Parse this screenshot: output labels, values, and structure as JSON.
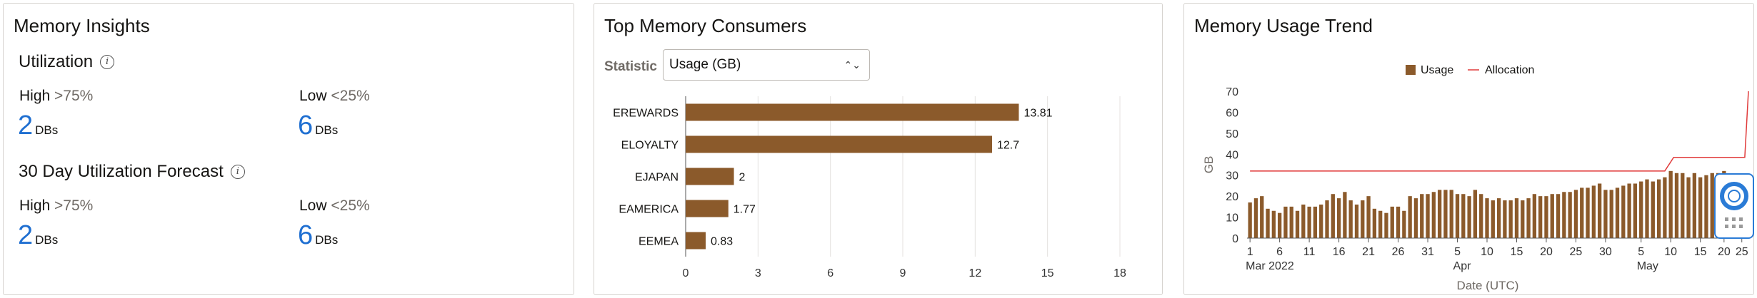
{
  "insights": {
    "title": "Memory Insights",
    "utilization": {
      "title": "Utilization",
      "high": {
        "level": "High",
        "cmp": ">75%",
        "count": "2",
        "unit": "DBs"
      },
      "low": {
        "level": "Low",
        "cmp": "<25%",
        "count": "6",
        "unit": "DBs"
      }
    },
    "forecast": {
      "title": "30 Day Utilization Forecast",
      "high": {
        "level": "High",
        "cmp": ">75%",
        "count": "2",
        "unit": "DBs"
      },
      "low": {
        "level": "Low",
        "cmp": "<25%",
        "count": "6",
        "unit": "DBs"
      }
    },
    "info_glyph": "i"
  },
  "consumers": {
    "title": "Top Memory Consumers",
    "statistic_label": "Statistic",
    "statistic_value": "Usage (GB)"
  },
  "trend": {
    "title": "Memory Usage Trend"
  },
  "colors": {
    "bar": "#8b5a2b",
    "allocation": "#e03b3b",
    "link": "#1f6fd1"
  },
  "chart_data": [
    {
      "type": "bar",
      "orientation": "horizontal",
      "categories": [
        "EREWARDS",
        "ELOYALTY",
        "EJAPAN",
        "EAMERICA",
        "EEMEA"
      ],
      "values": [
        13.81,
        12.7,
        2,
        1.77,
        0.83
      ],
      "value_labels": [
        "13.81",
        "12.7",
        "2",
        "1.77",
        "0.83"
      ],
      "xlim": [
        0,
        18
      ],
      "xticks": [
        "0",
        "3",
        "6",
        "9",
        "12",
        "15",
        "18"
      ],
      "grid": true
    },
    {
      "type": "bar",
      "ylabel": "GB",
      "xlabel": "Date (UTC)",
      "ylim": [
        0,
        70
      ],
      "yticks": [
        "0",
        "10",
        "20",
        "30",
        "40",
        "50",
        "60",
        "70"
      ],
      "xticks": [
        "1",
        "6",
        "11",
        "16",
        "21",
        "26",
        "31",
        "5",
        "10",
        "15",
        "20",
        "25",
        "30",
        "5",
        "10",
        "15",
        "20",
        "25"
      ],
      "month_labels": [
        {
          "label": "Mar 2022",
          "tick": 0
        },
        {
          "label": "Apr",
          "tick": 7
        },
        {
          "label": "May",
          "tick": 13
        }
      ],
      "legend": {
        "position": "top",
        "items": [
          "Usage",
          "Allocation"
        ]
      },
      "series": [
        {
          "name": "Usage",
          "type": "bar",
          "values": [
            17,
            19,
            20,
            14,
            13,
            12,
            15,
            15,
            13,
            16,
            15,
            15,
            16,
            18,
            21,
            19,
            22,
            18,
            16,
            18,
            20,
            14,
            13,
            12,
            15,
            15,
            13,
            20,
            19,
            21,
            21,
            22,
            23,
            23,
            23,
            21,
            21,
            20,
            23,
            21,
            19,
            18,
            19,
            18,
            18,
            19,
            18,
            19,
            21,
            20,
            20,
            21,
            21,
            22,
            22,
            23,
            24,
            24,
            25,
            26,
            23,
            23,
            24,
            25,
            26,
            26,
            27,
            28,
            27,
            28,
            29,
            32,
            31,
            31,
            29,
            31,
            29,
            30,
            31,
            31,
            32
          ]
        },
        {
          "name": "Allocation",
          "type": "step-line",
          "points": [
            [
              0,
              32
            ],
            [
              70,
              32
            ],
            [
              71.5,
              38.5
            ],
            [
              83,
              38.5
            ],
            [
              84,
              70
            ],
            [
              86,
              70
            ]
          ]
        }
      ]
    }
  ]
}
